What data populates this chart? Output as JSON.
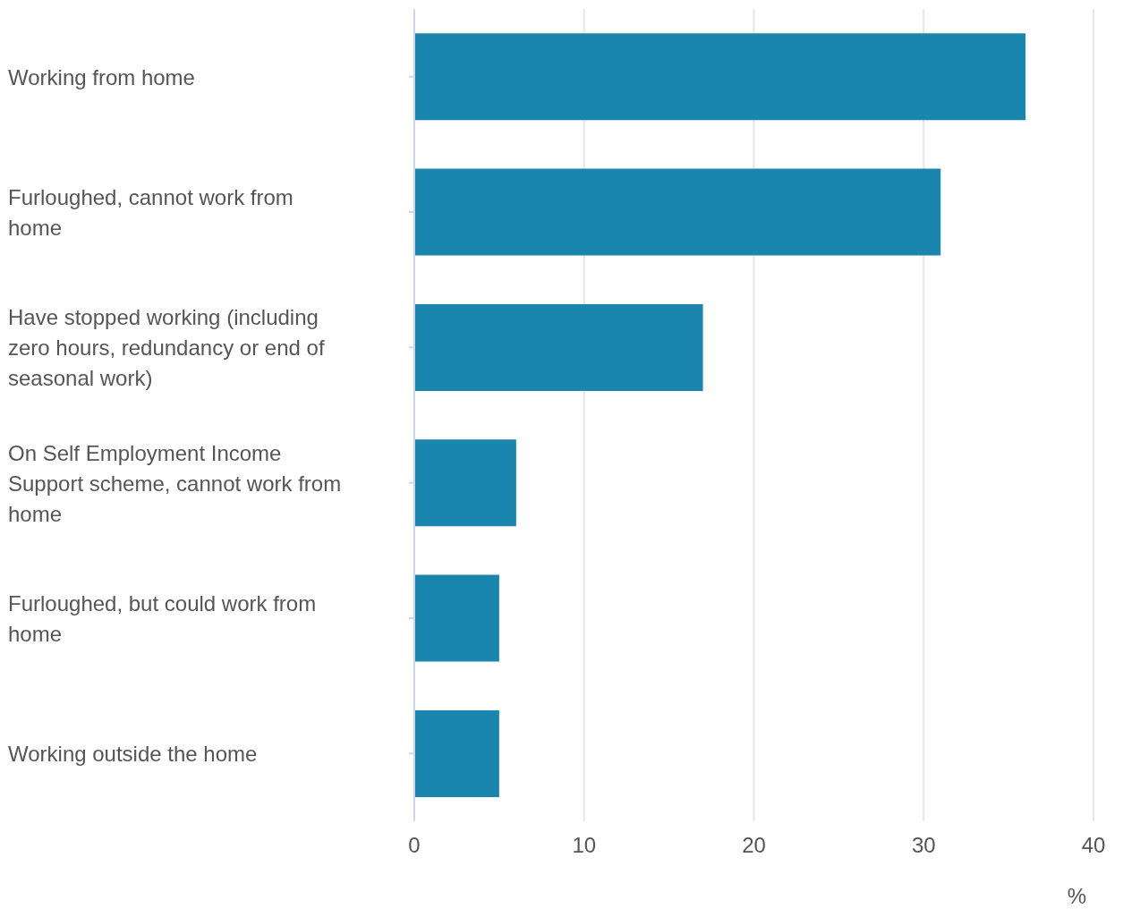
{
  "chart_data": {
    "type": "bar",
    "orientation": "horizontal",
    "categories": [
      "Working from home",
      "Furloughed, cannot work from home",
      "Have stopped working (including zero hours, redundancy or end of seasonal work)",
      "On Self Employment Income Support scheme, cannot work from home",
      "Furloughed, but could work from home",
      "Working outside the home"
    ],
    "values": [
      36,
      31,
      17,
      6,
      5,
      5
    ],
    "color": "#1a85ad",
    "xlim": [
      0,
      40
    ],
    "xticks": [
      0,
      10,
      20,
      30,
      40
    ],
    "xlabel": "%",
    "grid": "x"
  }
}
